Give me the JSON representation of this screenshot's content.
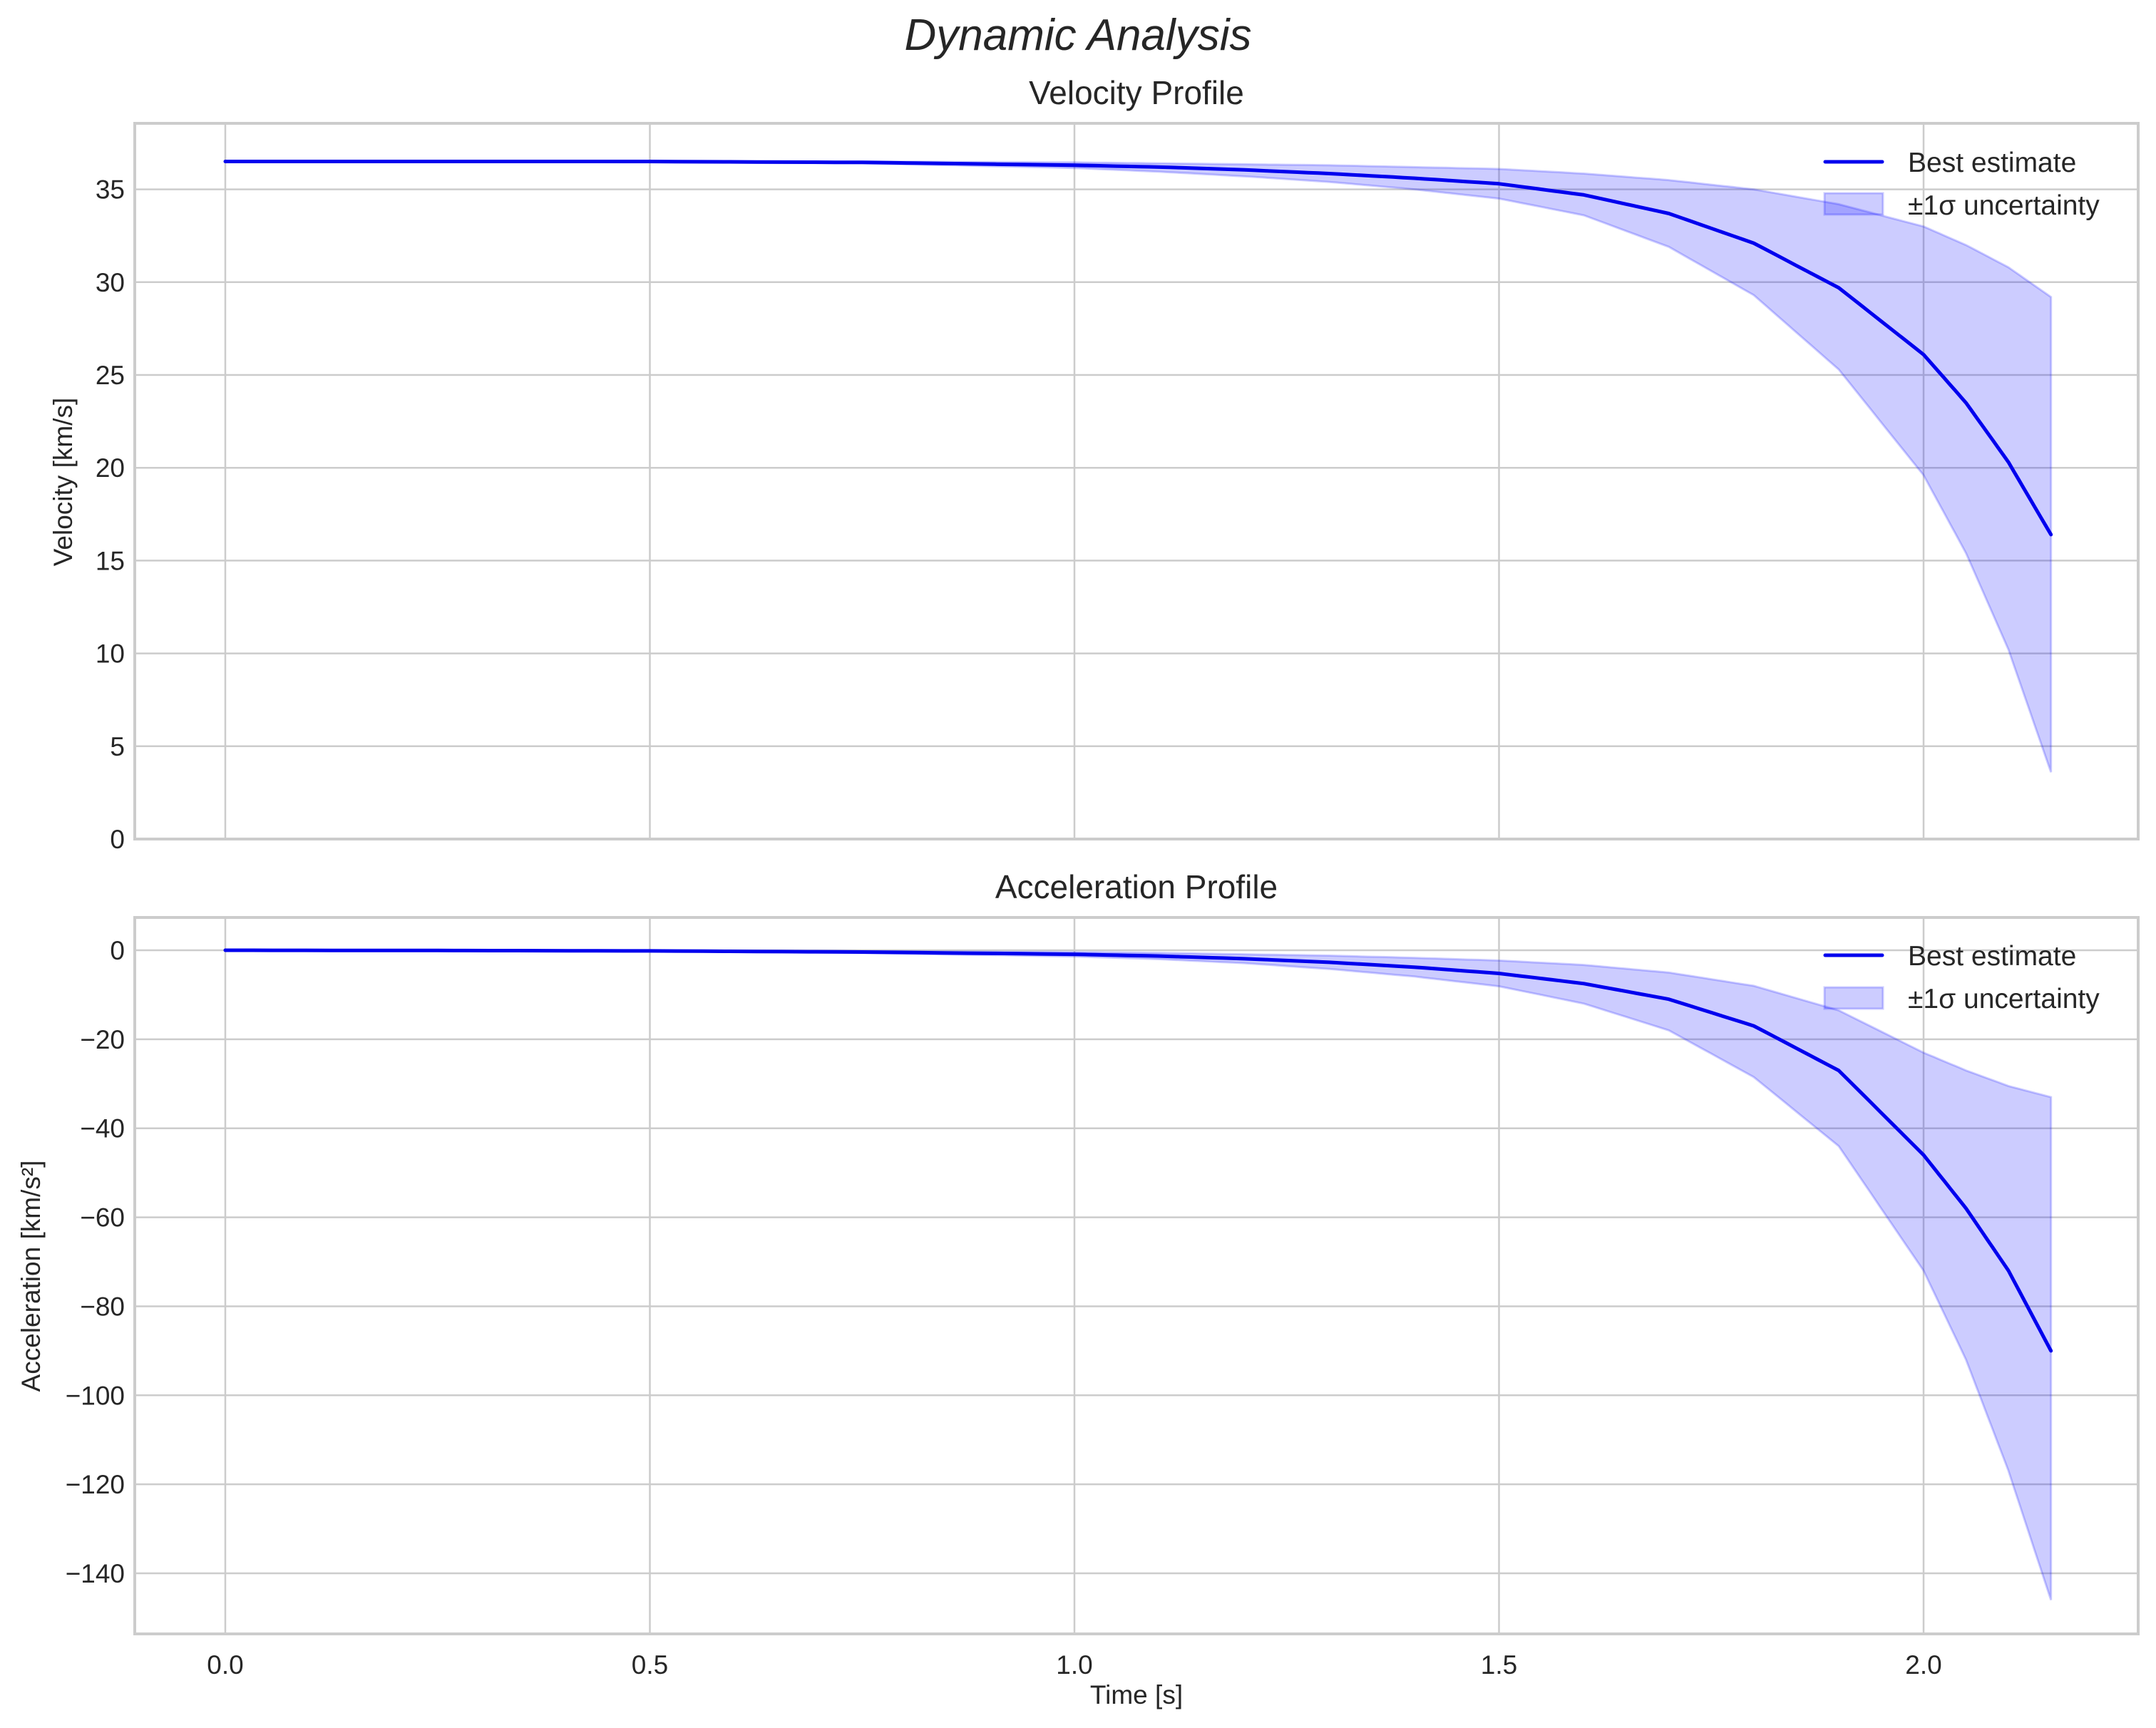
{
  "figure": {
    "suptitle": "Dynamic Analysis",
    "xlabel": "Time [s]",
    "x_ticks": [
      "0.0",
      "0.5",
      "1.0",
      "1.5",
      "2.0"
    ]
  },
  "panels": [
    {
      "title": "Velocity Profile",
      "ylabel": "Velocity [km/s]",
      "y_ticks": [
        "0",
        "5",
        "10",
        "15",
        "20",
        "25",
        "30",
        "35"
      ],
      "legend": {
        "line": "Best estimate",
        "band": "±1σ uncertainty"
      }
    },
    {
      "title": "Acceleration Profile",
      "ylabel": "Acceleration [km/s²]",
      "y_ticks": [
        "0",
        "−20",
        "−40",
        "−60",
        "−80",
        "−100",
        "−120",
        "−140"
      ],
      "legend": {
        "line": "Best estimate",
        "band": "±1σ uncertainty"
      }
    }
  ],
  "colors": {
    "line": "#0000ee",
    "band": "#0000ff",
    "grid": "#cccccc",
    "text": "#262626"
  },
  "chart_data": [
    {
      "type": "line",
      "title": "Velocity Profile",
      "xlabel": "Time [s]",
      "ylabel": "Velocity [km/s]",
      "xlim": [
        -0.107,
        2.253
      ],
      "ylim": [
        0,
        38.2
      ],
      "grid": true,
      "legend_position": "upper right",
      "x": [
        0.0,
        0.25,
        0.5,
        0.75,
        1.0,
        1.1,
        1.2,
        1.3,
        1.4,
        1.5,
        1.6,
        1.7,
        1.8,
        1.9,
        2.0,
        2.05,
        2.1,
        2.15
      ],
      "series": [
        {
          "name": "Best estimate",
          "values": [
            36.5,
            36.5,
            36.5,
            36.45,
            36.3,
            36.2,
            36.05,
            35.85,
            35.6,
            35.3,
            34.7,
            33.7,
            32.1,
            29.7,
            26.1,
            23.5,
            20.3,
            16.4
          ]
        },
        {
          "name": "±1σ upper",
          "values": [
            36.5,
            36.5,
            36.5,
            36.5,
            36.45,
            36.4,
            36.35,
            36.3,
            36.2,
            36.1,
            35.85,
            35.5,
            35.0,
            34.2,
            33.0,
            32.0,
            30.8,
            29.2
          ]
        },
        {
          "name": "±1σ lower",
          "values": [
            36.5,
            36.5,
            36.45,
            36.4,
            36.15,
            35.95,
            35.7,
            35.4,
            35.0,
            34.5,
            33.6,
            31.9,
            29.3,
            25.3,
            19.6,
            15.4,
            10.2,
            3.6
          ]
        }
      ]
    },
    {
      "type": "line",
      "title": "Acceleration Profile",
      "xlabel": "Time [s]",
      "ylabel": "Acceleration [km/s²]",
      "xlim": [
        -0.107,
        2.253
      ],
      "ylim": [
        -153,
        7
      ],
      "grid": true,
      "legend_position": "upper right",
      "x": [
        0.0,
        0.25,
        0.5,
        0.75,
        1.0,
        1.1,
        1.2,
        1.3,
        1.4,
        1.5,
        1.6,
        1.7,
        1.8,
        1.9,
        2.0,
        2.05,
        2.1,
        2.15
      ],
      "series": [
        {
          "name": "Best estimate",
          "values": [
            0.0,
            -0.05,
            -0.15,
            -0.4,
            -0.9,
            -1.3,
            -1.9,
            -2.7,
            -3.8,
            -5.2,
            -7.5,
            -11.0,
            -17.0,
            -27.0,
            -46.0,
            -58.0,
            -72.0,
            -90.0
          ]
        },
        {
          "name": "±1σ upper",
          "values": [
            0.0,
            0.0,
            -0.05,
            -0.2,
            -0.4,
            -0.6,
            -0.9,
            -1.2,
            -1.7,
            -2.3,
            -3.3,
            -5.0,
            -8.0,
            -13.5,
            -23.0,
            -27.0,
            -30.5,
            -33.0
          ]
        },
        {
          "name": "±1σ lower",
          "values": [
            0.0,
            -0.1,
            -0.25,
            -0.6,
            -1.4,
            -2.0,
            -2.9,
            -4.2,
            -5.9,
            -8.1,
            -12.0,
            -18.0,
            -28.5,
            -44.0,
            -72.0,
            -92.0,
            -117.0,
            -146.0
          ]
        }
      ]
    }
  ]
}
